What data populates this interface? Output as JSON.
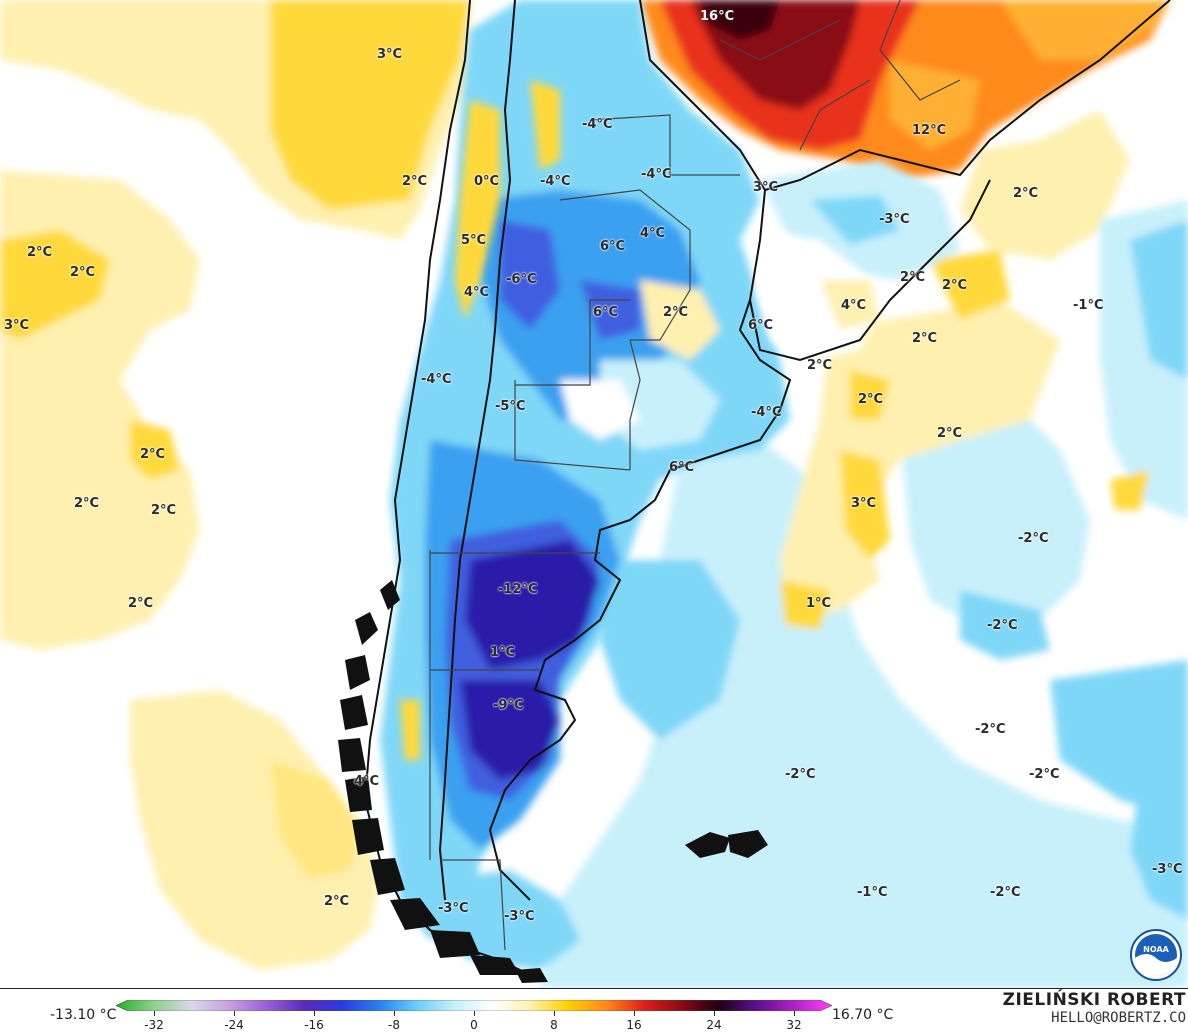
{
  "map": {
    "colors": {
      "cold_extreme": "#2a1aa8",
      "cold_strong": "#3f5fe0",
      "cold_mid": "#3aa0f0",
      "cold_light": "#7fd7f7",
      "cold_pale": "#c8f0fb",
      "neutral": "#ffffff",
      "warm_pale": "#fff0b0",
      "warm_light": "#ffd93a",
      "warm_orange": "#ff8a1a",
      "warm_red": "#e8331a",
      "warm_dark": "#8a0a14",
      "warm_black": "#3a0010",
      "border": "#111111"
    },
    "labels": [
      {
        "text": "16°C",
        "light": true
      },
      {
        "text": "3°C"
      },
      {
        "text": "-4°C"
      },
      {
        "text": "12°C"
      },
      {
        "text": "2°C"
      },
      {
        "text": "0°C"
      },
      {
        "text": "-4°C"
      },
      {
        "text": "-4°C"
      },
      {
        "text": "3°C"
      },
      {
        "text": "2°C"
      },
      {
        "text": "-3°C"
      },
      {
        "text": "5°C"
      },
      {
        "text": "6°C"
      },
      {
        "text": "4°C"
      },
      {
        "text": "2°C"
      },
      {
        "text": "2°C"
      },
      {
        "text": "-6°C"
      },
      {
        "text": "2°C"
      },
      {
        "text": "4°C"
      },
      {
        "text": "3°C"
      },
      {
        "text": "6°C"
      },
      {
        "text": "2°C"
      },
      {
        "text": "4°C"
      },
      {
        "text": "-1°C"
      },
      {
        "text": "6°C"
      },
      {
        "text": "2°C"
      },
      {
        "text": "2°C"
      },
      {
        "text": "-4°C"
      },
      {
        "text": "2°C"
      },
      {
        "text": "-5°C"
      },
      {
        "text": "-4°C"
      },
      {
        "text": "2°C"
      },
      {
        "text": "2°C"
      },
      {
        "text": "6°C"
      },
      {
        "text": "2°C"
      },
      {
        "text": "3°C"
      },
      {
        "text": "2°C"
      },
      {
        "text": "-2°C"
      },
      {
        "text": "-12°C"
      },
      {
        "text": "2°C"
      },
      {
        "text": "1°C"
      },
      {
        "text": "-2°C"
      },
      {
        "text": "1°C"
      },
      {
        "text": "-9°C"
      },
      {
        "text": "-2°C"
      },
      {
        "text": "-2°C"
      },
      {
        "text": "-2°C"
      },
      {
        "text": "4°C"
      },
      {
        "text": "2°C"
      },
      {
        "text": "-1°C"
      },
      {
        "text": "-2°C"
      },
      {
        "text": "-3°C"
      },
      {
        "text": "2°C"
      },
      {
        "text": "-3°C"
      },
      {
        "text": "-3°C"
      }
    ]
  },
  "legend": {
    "min_value": "-13.10 °C",
    "max_value": "16.70 °C",
    "ticks": [
      "-32",
      "-24",
      "-16",
      "-8",
      "0",
      "8",
      "16",
      "24",
      "32"
    ],
    "gradient": [
      "#22b022",
      "#8ed08e",
      "#d8d8e8",
      "#c8a0e0",
      "#9a60d8",
      "#5a2ab8",
      "#2a3ae0",
      "#2a80f0",
      "#6ad0f8",
      "#c8f0fb",
      "#ffffff",
      "#fff0b0",
      "#ffd000",
      "#ff8a1a",
      "#e0201a",
      "#8a0a14",
      "#200010",
      "#5a1090",
      "#b020c8",
      "#ff40ff"
    ]
  },
  "credit": {
    "name": "ZIELIŃSKI ROBERT",
    "email": "HELLO@ROBERTZ.CO"
  },
  "icons": {
    "logo": "noaa-logo-icon"
  }
}
